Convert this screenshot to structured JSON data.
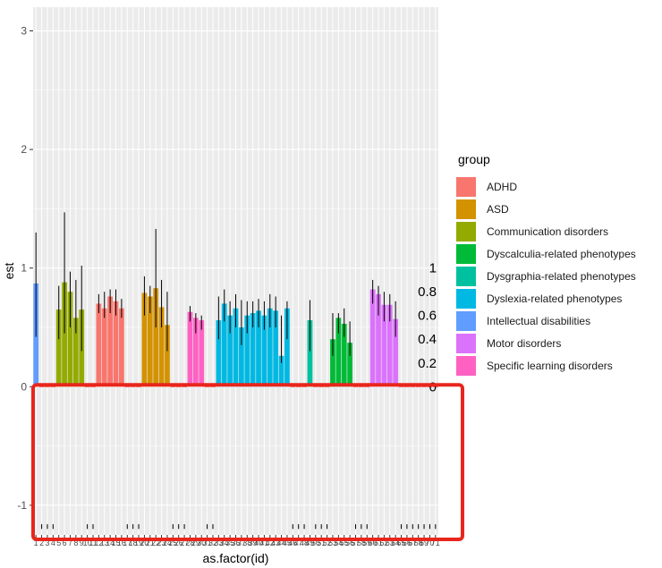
{
  "chart_data": {
    "type": "bar",
    "xlabel": "as.factor(id)",
    "ylabel": "est",
    "ylim": [
      -1.25,
      3.2
    ],
    "yticks": [
      -1,
      0,
      1,
      2,
      3
    ],
    "x_tick_labels": [
      "1",
      "2",
      "3",
      "4",
      "5",
      "6",
      "7",
      "8",
      "9",
      "10",
      "11",
      "12",
      "13",
      "14",
      "15",
      "16",
      "17",
      "18",
      "19",
      "20",
      "21",
      "22",
      "23",
      "24",
      "25",
      "26",
      "27",
      "28",
      "29",
      "30",
      "31",
      "32",
      "33",
      "34",
      "35",
      "36",
      "37",
      "38",
      "39",
      "40",
      "41",
      "42",
      "43",
      "44",
      "45",
      "46",
      "47",
      "48",
      "49",
      "50",
      "51",
      "52",
      "53",
      "54",
      "55",
      "56",
      "57",
      "58",
      "59",
      "60",
      "61",
      "62",
      "63",
      "64",
      "65",
      "66",
      "67",
      "68",
      "69",
      "70",
      "71"
    ],
    "legend": {
      "title": "group",
      "position": "right",
      "entries": [
        {
          "label": "ADHD",
          "color": "#F8766D"
        },
        {
          "label": "ASD",
          "color": "#D39200"
        },
        {
          "label": "Communication disorders",
          "color": "#93AA00"
        },
        {
          "label": "Dyscalculia-related phenotypes",
          "color": "#00BA38"
        },
        {
          "label": "Dysgraphia-related phenotypes",
          "color": "#00C19F"
        },
        {
          "label": "Dyslexia-related phenotypes",
          "color": "#00B9E3"
        },
        {
          "label": "Intellectual disabilities",
          "color": "#619CFF"
        },
        {
          "label": "Motor disorders",
          "color": "#DB72FB"
        },
        {
          "label": "Specific learning disorders",
          "color": "#FF61C3"
        }
      ]
    },
    "secondary_labels": [
      "1",
      "0.8",
      "0.6",
      "0.4",
      "0.2",
      "0"
    ],
    "bars": [
      {
        "id": 1,
        "group": "Intellectual disabilities",
        "est": 0.87,
        "lo": 0.42,
        "hi": 1.3
      },
      {
        "id": 5,
        "group": "Communication disorders",
        "est": 0.65,
        "lo": 0.4,
        "hi": 0.85
      },
      {
        "id": 6,
        "group": "Communication disorders",
        "est": 0.88,
        "lo": 0.45,
        "hi": 1.47
      },
      {
        "id": 7,
        "group": "Communication disorders",
        "est": 0.8,
        "lo": 0.5,
        "hi": 0.97
      },
      {
        "id": 8,
        "group": "Communication disorders",
        "est": 0.58,
        "lo": 0.45,
        "hi": 0.9
      },
      {
        "id": 9,
        "group": "Communication disorders",
        "est": 0.65,
        "lo": 0.3,
        "hi": 1.02
      },
      {
        "id": 12,
        "group": "ADHD",
        "est": 0.7,
        "lo": 0.62,
        "hi": 0.78
      },
      {
        "id": 13,
        "group": "ADHD",
        "est": 0.66,
        "lo": 0.58,
        "hi": 0.8
      },
      {
        "id": 14,
        "group": "ADHD",
        "est": 0.76,
        "lo": 0.62,
        "hi": 0.82
      },
      {
        "id": 15,
        "group": "ADHD",
        "est": 0.72,
        "lo": 0.6,
        "hi": 0.82
      },
      {
        "id": 16,
        "group": "ADHD",
        "est": 0.66,
        "lo": 0.58,
        "hi": 0.74
      },
      {
        "id": 20,
        "group": "ASD",
        "est": 0.79,
        "lo": 0.6,
        "hi": 0.93
      },
      {
        "id": 21,
        "group": "ASD",
        "est": 0.76,
        "lo": 0.62,
        "hi": 0.85
      },
      {
        "id": 22,
        "group": "ASD",
        "est": 0.83,
        "lo": 0.5,
        "hi": 1.33
      },
      {
        "id": 23,
        "group": "ASD",
        "est": 0.67,
        "lo": 0.5,
        "hi": 0.9
      },
      {
        "id": 24,
        "group": "ASD",
        "est": 0.52,
        "lo": 0.3,
        "hi": 0.8
      },
      {
        "id": 28,
        "group": "Specific learning disorders",
        "est": 0.63,
        "lo": 0.55,
        "hi": 0.68
      },
      {
        "id": 29,
        "group": "Specific learning disorders",
        "est": 0.58,
        "lo": 0.45,
        "hi": 0.62
      },
      {
        "id": 30,
        "group": "Specific learning disorders",
        "est": 0.56,
        "lo": 0.48,
        "hi": 0.6
      },
      {
        "id": 33,
        "group": "Dyslexia-related phenotypes",
        "est": 0.56,
        "lo": 0.4,
        "hi": 0.76
      },
      {
        "id": 34,
        "group": "Dyslexia-related phenotypes",
        "est": 0.7,
        "lo": 0.55,
        "hi": 0.82
      },
      {
        "id": 35,
        "group": "Dyslexia-related phenotypes",
        "est": 0.6,
        "lo": 0.45,
        "hi": 0.72
      },
      {
        "id": 36,
        "group": "Dyslexia-related phenotypes",
        "est": 0.66,
        "lo": 0.5,
        "hi": 0.78
      },
      {
        "id": 37,
        "group": "Dyslexia-related phenotypes",
        "est": 0.5,
        "lo": 0.35,
        "hi": 0.73
      },
      {
        "id": 38,
        "group": "Dyslexia-related phenotypes",
        "est": 0.6,
        "lo": 0.45,
        "hi": 0.72
      },
      {
        "id": 39,
        "group": "Dyslexia-related phenotypes",
        "est": 0.62,
        "lo": 0.5,
        "hi": 0.72
      },
      {
        "id": 40,
        "group": "Dyslexia-related phenotypes",
        "est": 0.64,
        "lo": 0.5,
        "hi": 0.74
      },
      {
        "id": 41,
        "group": "Dyslexia-related phenotypes",
        "est": 0.6,
        "lo": 0.48,
        "hi": 0.72
      },
      {
        "id": 42,
        "group": "Dyslexia-related phenotypes",
        "est": 0.66,
        "lo": 0.5,
        "hi": 0.78
      },
      {
        "id": 43,
        "group": "Dyslexia-related phenotypes",
        "est": 0.64,
        "lo": 0.5,
        "hi": 0.76
      },
      {
        "id": 44,
        "group": "Dyslexia-related phenotypes",
        "est": 0.26,
        "lo": 0.2,
        "hi": 0.6
      },
      {
        "id": 45,
        "group": "Dyslexia-related phenotypes",
        "est": 0.66,
        "lo": 0.4,
        "hi": 0.72
      },
      {
        "id": 49,
        "group": "Dysgraphia-related phenotypes",
        "est": 0.56,
        "lo": 0.3,
        "hi": 0.73
      },
      {
        "id": 53,
        "group": "Dyscalculia-related phenotypes",
        "est": 0.4,
        "lo": 0.26,
        "hi": 0.62
      },
      {
        "id": 54,
        "group": "Dyscalculia-related phenotypes",
        "est": 0.58,
        "lo": 0.45,
        "hi": 0.62
      },
      {
        "id": 55,
        "group": "Dyscalculia-related phenotypes",
        "est": 0.53,
        "lo": 0.42,
        "hi": 0.66
      },
      {
        "id": 56,
        "group": "Dyscalculia-related phenotypes",
        "est": 0.37,
        "lo": 0.26,
        "hi": 0.55
      },
      {
        "id": 60,
        "group": "Motor disorders",
        "est": 0.82,
        "lo": 0.7,
        "hi": 0.9
      },
      {
        "id": 61,
        "group": "Motor disorders",
        "est": 0.78,
        "lo": 0.6,
        "hi": 0.85
      },
      {
        "id": 62,
        "group": "Motor disorders",
        "est": 0.69,
        "lo": 0.55,
        "hi": 0.8
      },
      {
        "id": 63,
        "group": "Motor disorders",
        "est": 0.69,
        "lo": 0.55,
        "hi": 0.78
      },
      {
        "id": 64,
        "group": "Motor disorders",
        "est": 0.57,
        "lo": 0.42,
        "hi": 0.72
      }
    ]
  }
}
